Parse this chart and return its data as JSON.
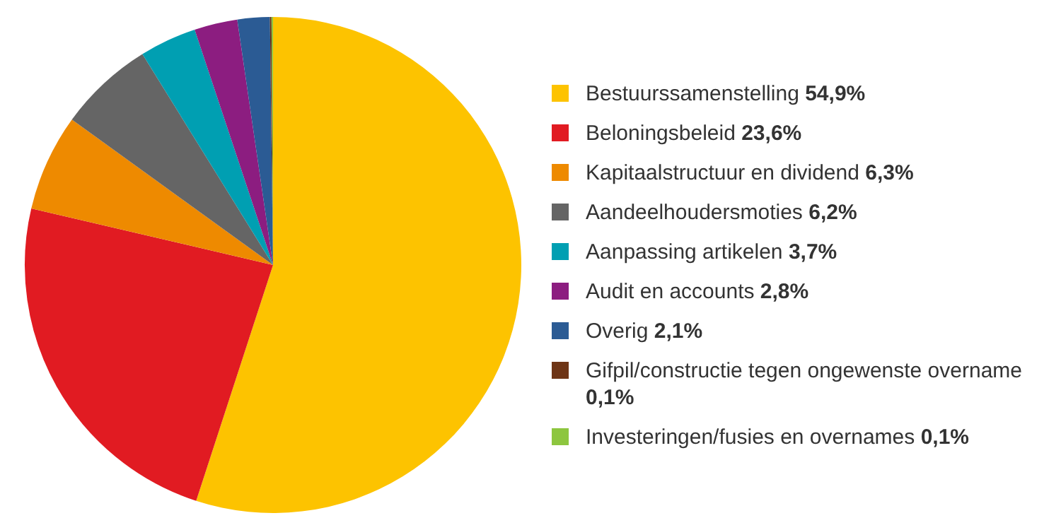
{
  "chart_data": {
    "type": "pie",
    "categories": [
      "Bestuurssamenstelling",
      "Beloningsbeleid",
      "Kapitaalstructuur en dividend",
      "Aandeelhoudersmoties",
      "Aanpassing artikelen",
      "Audit en accounts",
      "Overig",
      "Gifpil/constructie tegen ongewenste overname",
      "Investeringen/fusies en overnames"
    ],
    "values": [
      54.9,
      23.6,
      6.3,
      6.2,
      3.7,
      2.8,
      2.1,
      0.1,
      0.1
    ],
    "value_labels": [
      "54,9%",
      "23,6%",
      "6,3%",
      "6,2%",
      "3,7%",
      "2,8%",
      "2,1%",
      "0,1%",
      "0,1%"
    ],
    "colors": [
      "#fdc300",
      "#e11b22",
      "#ee8a00",
      "#656565",
      "#009fb2",
      "#8c1d80",
      "#2b5b94",
      "#6e3516",
      "#8dc63f"
    ],
    "legend": "right"
  }
}
